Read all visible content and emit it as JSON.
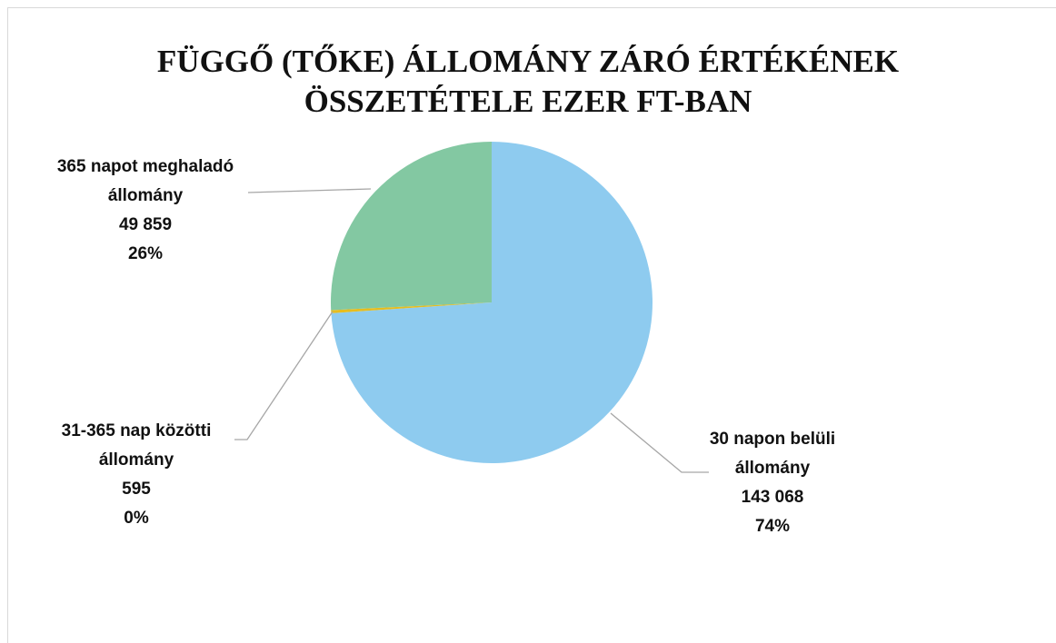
{
  "chart_data": {
    "type": "pie",
    "title": "FÜGGŐ (TŐKE) ÁLLOMÁNY ZÁRÓ ÉRTÉKÉNEK ÖSSZETÉTELE EZER FT-BAN",
    "categories": [
      "30 napon belüli állomány",
      "31-365 nap közötti állomány",
      "365 napot meghaladó állomány"
    ],
    "values": [
      143068,
      595,
      49859
    ],
    "value_labels": [
      "143 068",
      "595",
      "49 859"
    ],
    "percent_labels": [
      "74%",
      "0%",
      "26%"
    ],
    "colors": [
      "#8ecbef",
      "#e6bd1f",
      "#83c8a2"
    ]
  }
}
